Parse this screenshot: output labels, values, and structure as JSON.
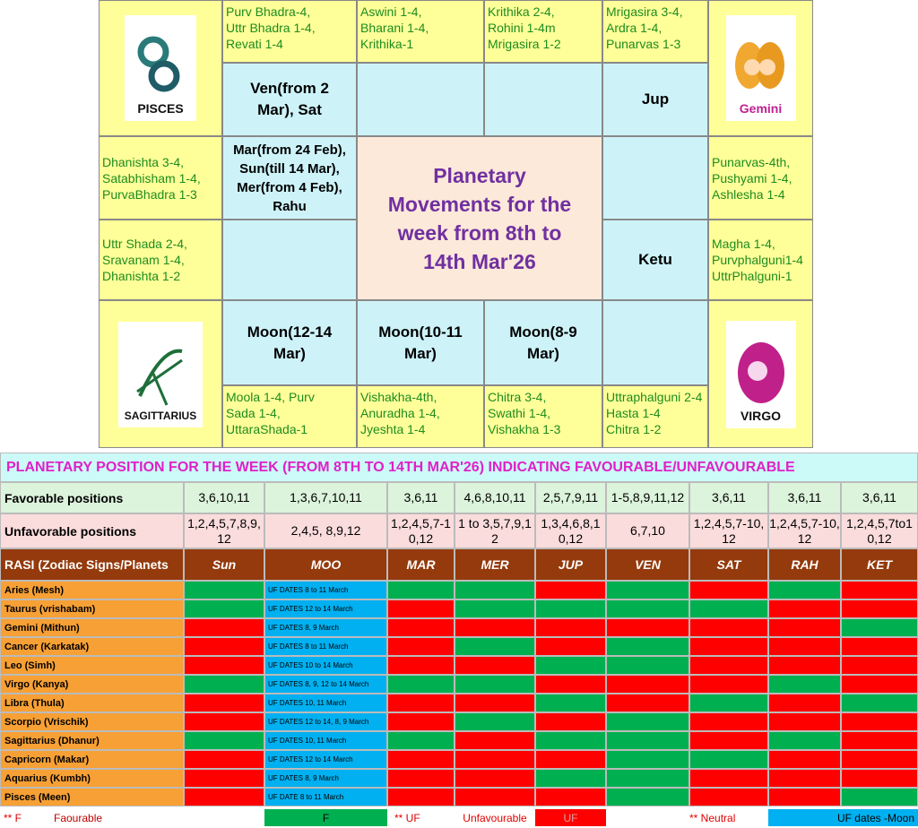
{
  "rasi_chart": {
    "title": [
      "Planetary",
      "Movements for the",
      "week from 8th to",
      "14th Mar'26"
    ],
    "sign_labels": [
      "PISCES",
      "Gemini",
      "SAGITTARIUS",
      "VIRGO"
    ],
    "nakshatras": [
      [
        "Purv Bhadra-4,",
        "Uttr Bhadra 1-4,",
        "Revati 1-4"
      ],
      [
        "Aswini 1-4,",
        "Bharani 1-4,",
        "Krithika-1"
      ],
      [
        "Krithika 2-4,",
        "Rohini 1-4m",
        "Mrigasira 1-2"
      ],
      [
        "Mrigasira 3-4,",
        "Ardra 1-4,",
        "Punarvas 1-3"
      ],
      [
        "Dhanishta 3-4,",
        "Satabhisham 1-4,",
        "PurvaBhadra 1-3"
      ],
      [
        "Uttr Shada 2-4,",
        "Sravanam 1-4,",
        "Dhanishta 1-2"
      ],
      [
        "Punarvas-4th,",
        "Pushyami 1-4,",
        "Ashlesha 1-4"
      ],
      [
        "Magha 1-4,",
        "Purvphalguni1-4",
        "UttrPhalguni-1"
      ],
      [
        "Moola 1-4,            Purv",
        "Sada 1-4,",
        "UttaraShada-1"
      ],
      [
        "Vishakha-4th,",
        "Anuradha 1-4,",
        "Jyeshta 1-4"
      ],
      [
        "Chitra 3-4,",
        "Swathi 1-4,",
        "Vishakha 1-3"
      ],
      [
        "Uttraphalguni 2-4",
        "Hasta 1-4",
        "Chitra 1-2"
      ]
    ],
    "planets": [
      [
        "Ven(from 2",
        "Mar), Sat"
      ],
      [
        "Jup"
      ],
      [
        "Mar(from 24 Feb),",
        "Sun(till 14 Mar),",
        "Mer(from 4 Feb),",
        "Rahu"
      ],
      [
        "Ketu"
      ],
      [
        "Moon(12-14",
        "Mar)"
      ],
      [
        "Moon(10-11",
        "Mar)"
      ],
      [
        "Moon(8-9",
        "Mar)"
      ]
    ]
  },
  "table": {
    "title": "PLANETARY POSITION FOR THE WEEK (FROM 8TH TO 14TH MAR'26) INDICATING FAVOURABLE/UNFAVOURABLE",
    "favorable": {
      "label": "Favorable positions",
      "values": [
        "3,6,10,11",
        "1,3,6,7,10,11",
        "3,6,11",
        "4,6,8,10,11",
        "2,5,7,9,11",
        "1-5,8,9,11,12",
        "3,6,11",
        "3,6,11",
        "3,6,11"
      ]
    },
    "unfavorable": {
      "label": "Unfavorable positions",
      "values": [
        "1,2,4,5,7,8,9,12",
        "2,4,5, 8,9,12",
        "1,2,4,5,7-10,12",
        "1 to 3,5,7,9,12",
        "1,3,4,6,8,10,12",
        "6,7,10",
        "1,2,4,5,7-10,12",
        "1,2,4,5,7-10,12",
        "1,2,4,5,7to10,12"
      ]
    },
    "header": [
      "RASI (Zodiac Signs/Planets",
      "Sun",
      "MOO",
      "MAR",
      "MER",
      "JUP",
      "VEN",
      "SAT",
      "RAH",
      "KET"
    ],
    "moon_color": "#00b0f0",
    "rows": [
      {
        "sign": "Aries (Mesh)",
        "moon_note": "UF DATES 8 to 11 March",
        "colors": [
          "#00b050",
          "#00b050",
          "#00b050",
          "#ff0000",
          "#00b050",
          "#ff0000",
          "#00b050",
          "#ff0000"
        ]
      },
      {
        "sign": "Taurus (vrishabam)",
        "moon_note": "UF DATES 12 to 14 March",
        "colors": [
          "#00b050",
          "#ff0000",
          "#00b050",
          "#00b050",
          "#00b050",
          "#00b050",
          "#ff0000",
          "#ff0000"
        ]
      },
      {
        "sign": "Gemini (Mithun)",
        "moon_note": "UF DATES  8, 9 March",
        "colors": [
          "#ff0000",
          "#ff0000",
          "#ff0000",
          "#ff0000",
          "#ff0000",
          "#ff0000",
          "#ff0000",
          "#00b050"
        ]
      },
      {
        "sign": "Cancer (Karkatak)",
        "moon_note": "UF DATES 8 to 11 March",
        "colors": [
          "#ff0000",
          "#ff0000",
          "#00b050",
          "#ff0000",
          "#00b050",
          "#ff0000",
          "#ff0000",
          "#ff0000"
        ]
      },
      {
        "sign": "Leo (Simh)",
        "moon_note": "UF DATES 10 to 14 March",
        "colors": [
          "#ff0000",
          "#ff0000",
          "#ff0000",
          "#00b050",
          "#00b050",
          "#ff0000",
          "#ff0000",
          "#ff0000"
        ]
      },
      {
        "sign": "Virgo (Kanya)",
        "moon_note": "UF DATES 8, 9, 12 to 14 March",
        "colors": [
          "#00b050",
          "#00b050",
          "#00b050",
          "#ff0000",
          "#ff0000",
          "#ff0000",
          "#00b050",
          "#ff0000"
        ]
      },
      {
        "sign": "Libra (Thula)",
        "moon_note": "UF DATES 10, 11 March",
        "colors": [
          "#ff0000",
          "#ff0000",
          "#ff0000",
          "#00b050",
          "#ff0000",
          "#00b050",
          "#ff0000",
          "#00b050"
        ]
      },
      {
        "sign": "Scorpio (Vrischik)",
        "moon_note": "UF DATES 12 to 14, 8, 9 March",
        "colors": [
          "#ff0000",
          "#ff0000",
          "#00b050",
          "#ff0000",
          "#00b050",
          "#ff0000",
          "#ff0000",
          "#ff0000"
        ]
      },
      {
        "sign": "Sagittarius (Dhanur)",
        "moon_note": "UF DATES  10, 11 March",
        "colors": [
          "#00b050",
          "#00b050",
          "#ff0000",
          "#00b050",
          "#00b050",
          "#ff0000",
          "#00b050",
          "#ff0000"
        ]
      },
      {
        "sign": "Capricorn (Makar)",
        "moon_note": "UF DATES 12 to 14 March",
        "colors": [
          "#ff0000",
          "#ff0000",
          "#ff0000",
          "#ff0000",
          "#00b050",
          "#00b050",
          "#ff0000",
          "#ff0000"
        ]
      },
      {
        "sign": "Aquarius (Kumbh)",
        "moon_note": "UF DATES 8, 9 March",
        "colors": [
          "#ff0000",
          "#ff0000",
          "#ff0000",
          "#00b050",
          "#00b050",
          "#ff0000",
          "#ff0000",
          "#ff0000"
        ]
      },
      {
        "sign": "Pisces (Meen)",
        "moon_note": "UF DATE 8 to 11 March",
        "colors": [
          "#ff0000",
          "#ff0000",
          "#ff0000",
          "#ff0000",
          "#00b050",
          "#ff0000",
          "#ff0000",
          "#00b050"
        ]
      }
    ],
    "legend": [
      "** F",
      "Faourable",
      "F",
      "** UF",
      "Unfavourable",
      "UF",
      "** Neutral",
      "UF dates -Moon"
    ]
  }
}
